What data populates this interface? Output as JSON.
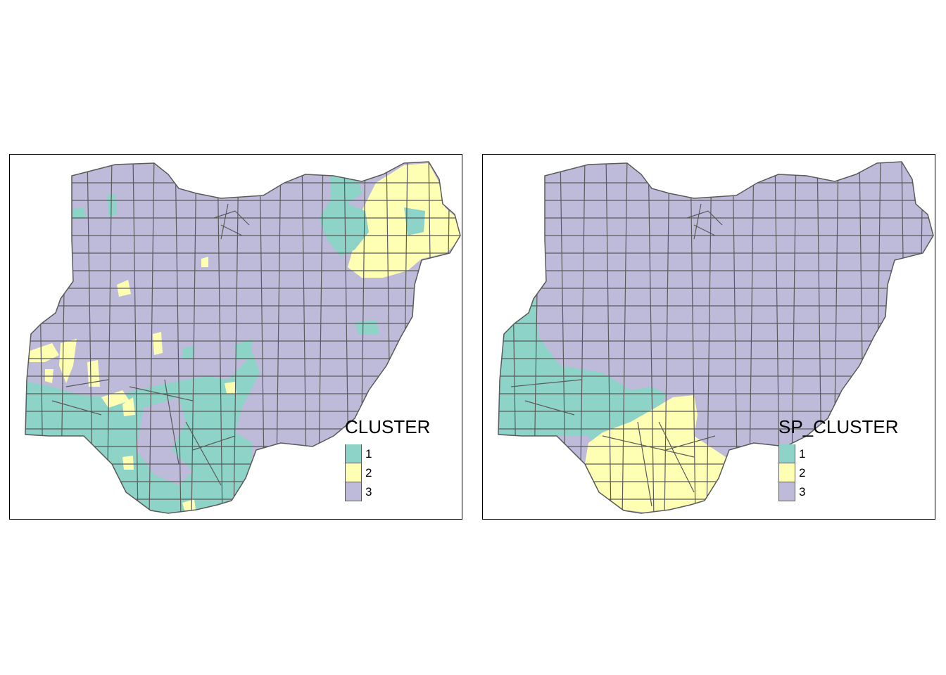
{
  "colors": {
    "cluster_1": "#8dd3c7",
    "cluster_2": "#ffffb3",
    "cluster_3": "#bebada",
    "border": "#5a5a5a"
  },
  "maps": [
    {
      "legend_title": "CLUSTER",
      "legend_items": [
        {
          "label": "1",
          "color": "#8dd3c7"
        },
        {
          "label": "2",
          "color": "#ffffb3"
        },
        {
          "label": "3",
          "color": "#bebada"
        }
      ]
    },
    {
      "legend_title": "SP_CLUSTER",
      "legend_items": [
        {
          "label": "1",
          "color": "#8dd3c7"
        },
        {
          "label": "2",
          "color": "#ffffb3"
        },
        {
          "label": "3",
          "color": "#bebada"
        }
      ]
    }
  ]
}
